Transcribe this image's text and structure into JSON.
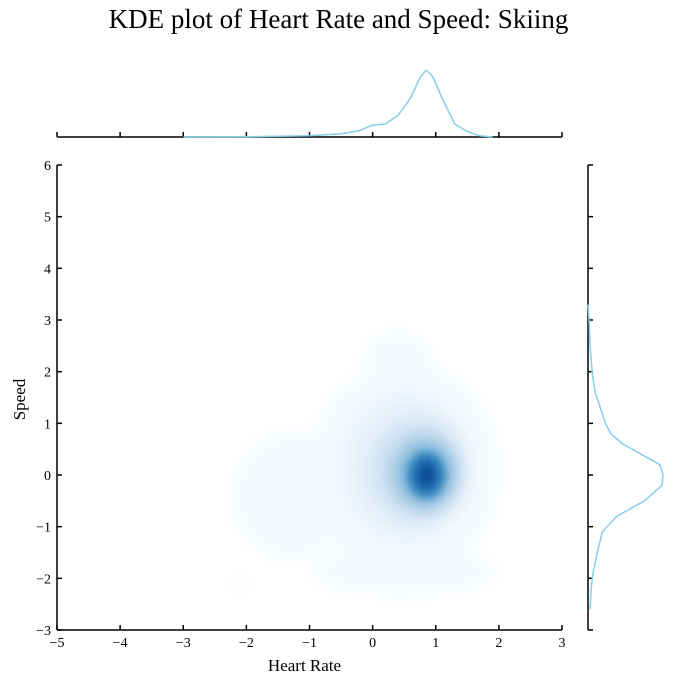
{
  "chart_data": {
    "type": "kde-joint",
    "title": "KDE plot of Heart Rate and Speed: Skiing",
    "xlabel": "Heart Rate",
    "ylabel": "Speed",
    "xlim": [
      -5,
      3
    ],
    "ylim": [
      -3,
      6
    ],
    "xticks": [
      "−5",
      "−4",
      "−3",
      "−2",
      "−1",
      "0",
      "1",
      "2",
      "3"
    ],
    "yticks": [
      "−3",
      "−2",
      "−1",
      "0",
      "1",
      "2",
      "3",
      "4",
      "5",
      "6"
    ],
    "grid": false,
    "colormap": "Blues",
    "marginal_color": "#87ceeb",
    "density_peak": {
      "x": 0.85,
      "y": 0.0
    },
    "marginal_x": {
      "x": [
        -3.0,
        -2.0,
        -1.0,
        -0.5,
        -0.2,
        0.0,
        0.2,
        0.4,
        0.6,
        0.75,
        0.85,
        0.95,
        1.1,
        1.3,
        1.5,
        1.7,
        1.9
      ],
      "density": [
        0.0,
        0.003,
        0.012,
        0.03,
        0.06,
        0.11,
        0.12,
        0.2,
        0.36,
        0.55,
        0.62,
        0.56,
        0.36,
        0.12,
        0.05,
        0.01,
        0.0
      ]
    },
    "marginal_y": {
      "y": [
        -2.6,
        -2.2,
        -1.9,
        -1.5,
        -1.1,
        -0.8,
        -0.5,
        -0.2,
        0.0,
        0.2,
        0.4,
        0.6,
        0.8,
        1.0,
        1.3,
        1.6,
        2.0,
        2.5,
        3.0,
        3.3
      ],
      "density": [
        0.02,
        0.03,
        0.05,
        0.09,
        0.14,
        0.28,
        0.55,
        0.72,
        0.73,
        0.7,
        0.52,
        0.34,
        0.22,
        0.17,
        0.12,
        0.07,
        0.04,
        0.02,
        0.01,
        0.0
      ]
    }
  }
}
